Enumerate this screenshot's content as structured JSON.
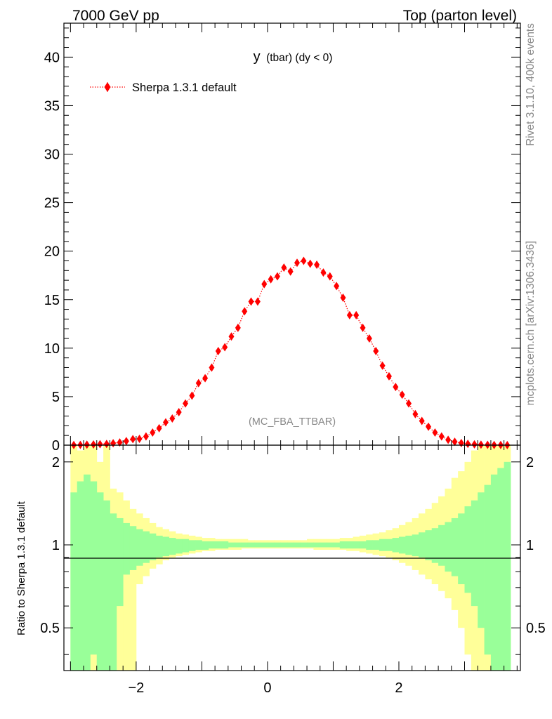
{
  "header": {
    "left": "7000 GeV pp",
    "right": "Top (parton level)"
  },
  "side_labels": {
    "rivet": "Rivet 3.1.10,  400k events",
    "mcplots": "mcplots.cern.ch [arXiv:1306.3436]"
  },
  "chart_data": [
    {
      "type": "scatter",
      "panel": "main",
      "title_main": "y",
      "title_sub": "(tbar) (dy < 0)",
      "analysis_label": "(MC_FBA_TTBAR)",
      "legend": [
        {
          "label": "Sherpa 1.3.1 default",
          "color": "#ff0000",
          "marker": "diamond",
          "line": "dotted"
        }
      ],
      "xlim": [
        -3.1,
        3.85
      ],
      "ylim": [
        0,
        43.5
      ],
      "yticks": [
        0,
        5,
        10,
        15,
        20,
        25,
        30,
        35,
        40
      ],
      "ytick_labels": [
        "0",
        "5",
        "10",
        "15",
        "20",
        "25",
        "30",
        "35",
        "40"
      ],
      "series": [
        {
          "name": "Sherpa 1.3.1 default",
          "x": [
            -2.95,
            -2.85,
            -2.75,
            -2.65,
            -2.55,
            -2.45,
            -2.35,
            -2.25,
            -2.15,
            -2.05,
            -1.95,
            -1.85,
            -1.75,
            -1.65,
            -1.55,
            -1.45,
            -1.35,
            -1.25,
            -1.15,
            -1.05,
            -0.95,
            -0.85,
            -0.75,
            -0.65,
            -0.55,
            -0.45,
            -0.35,
            -0.25,
            -0.15,
            -0.05,
            0.05,
            0.15,
            0.25,
            0.35,
            0.45,
            0.55,
            0.65,
            0.75,
            0.85,
            0.95,
            1.05,
            1.15,
            1.25,
            1.35,
            1.45,
            1.55,
            1.65,
            1.75,
            1.85,
            1.95,
            2.05,
            2.15,
            2.25,
            2.35,
            2.45,
            2.55,
            2.65,
            2.75,
            2.85,
            2.95,
            3.05,
            3.15,
            3.25,
            3.35,
            3.45,
            3.55,
            3.65
          ],
          "y": [
            0.02,
            0.03,
            0.05,
            0.07,
            0.1,
            0.13,
            0.2,
            0.28,
            0.42,
            0.62,
            0.65,
            0.9,
            1.3,
            1.75,
            2.35,
            2.75,
            3.4,
            4.3,
            5.1,
            6.4,
            6.9,
            8.0,
            9.7,
            10.1,
            11.2,
            12.1,
            13.8,
            14.8,
            14.8,
            16.6,
            17.1,
            17.4,
            18.3,
            17.9,
            18.8,
            19.0,
            18.7,
            18.6,
            17.8,
            17.4,
            16.4,
            15.2,
            13.4,
            13.4,
            12.1,
            11.0,
            9.7,
            8.2,
            7.1,
            6.0,
            5.2,
            4.3,
            3.2,
            2.5,
            1.9,
            1.3,
            0.9,
            0.55,
            0.35,
            0.22,
            0.14,
            0.08,
            0.05,
            0.04,
            0.02,
            0.02,
            0.01
          ]
        }
      ]
    },
    {
      "type": "area",
      "panel": "ratio",
      "ylabel": "Ratio to Sherpa 1.3.1 default",
      "xlim": [
        -3.1,
        3.85
      ],
      "ylim": [
        0.35,
        2.3
      ],
      "yscale": "log",
      "yticks": [
        0.5,
        1,
        2
      ],
      "ytick_labels": [
        "0.5",
        "1",
        "2"
      ],
      "xticks": [
        -2,
        0,
        2
      ],
      "xtick_labels": [
        "−2",
        "0",
        "2"
      ],
      "reference_line": 1,
      "bins": {
        "x_low": [
          -3.0,
          -2.9,
          -2.8,
          -2.7,
          -2.6,
          -2.5,
          -2.4,
          -2.3,
          -2.2,
          -2.1,
          -2.0,
          -1.9,
          -1.8,
          -1.7,
          -1.6,
          -1.5,
          -1.4,
          -1.3,
          -1.2,
          -1.1,
          -1.0,
          -0.9,
          -0.8,
          -0.7,
          -0.6,
          -0.5,
          -0.4,
          -0.3,
          -0.2,
          -0.1,
          0.0,
          0.1,
          0.2,
          0.3,
          0.4,
          0.5,
          0.6,
          0.7,
          0.8,
          0.9,
          1.0,
          1.1,
          1.2,
          1.3,
          1.4,
          1.5,
          1.6,
          1.7,
          1.8,
          1.9,
          2.0,
          2.1,
          2.2,
          2.3,
          2.4,
          2.5,
          2.6,
          2.7,
          2.8,
          2.9,
          3.0,
          3.1,
          3.2,
          3.3,
          3.4,
          3.5,
          3.6
        ],
        "x_high": [
          -2.9,
          -2.8,
          -2.7,
          -2.6,
          -2.5,
          -2.4,
          -2.3,
          -2.2,
          -2.1,
          -2.0,
          -1.9,
          -1.8,
          -1.7,
          -1.6,
          -1.5,
          -1.4,
          -1.3,
          -1.2,
          -1.1,
          -1.0,
          -0.9,
          -0.8,
          -0.7,
          -0.6,
          -0.5,
          -0.4,
          -0.3,
          -0.2,
          -0.1,
          0.0,
          0.1,
          0.2,
          0.3,
          0.4,
          0.5,
          0.6,
          0.7,
          0.8,
          0.9,
          1.0,
          1.1,
          1.2,
          1.3,
          1.4,
          1.5,
          1.6,
          1.7,
          1.8,
          1.9,
          2.0,
          2.1,
          2.2,
          2.3,
          2.4,
          2.5,
          2.6,
          2.7,
          2.8,
          2.9,
          3.0,
          3.1,
          3.2,
          3.3,
          3.4,
          3.5,
          3.6,
          3.7
        ]
      },
      "bands": [
        {
          "name": "MC total uncertainty",
          "color": "#ffff99",
          "upper": [
            2.5,
            2.2,
            2.5,
            2.5,
            2.0,
            2.3,
            1.6,
            1.55,
            1.45,
            1.35,
            1.3,
            1.25,
            1.2,
            1.16,
            1.14,
            1.12,
            1.1,
            1.09,
            1.08,
            1.07,
            1.06,
            1.06,
            1.05,
            1.05,
            1.05,
            1.05,
            1.05,
            1.04,
            1.04,
            1.04,
            1.04,
            1.04,
            1.04,
            1.04,
            1.04,
            1.04,
            1.05,
            1.05,
            1.05,
            1.05,
            1.05,
            1.06,
            1.06,
            1.07,
            1.08,
            1.09,
            1.1,
            1.11,
            1.13,
            1.15,
            1.18,
            1.21,
            1.25,
            1.3,
            1.35,
            1.42,
            1.5,
            1.6,
            1.75,
            1.85,
            2.0,
            2.2,
            2.5,
            2.5,
            2.5,
            2.5,
            2.5
          ],
          "lower": [
            0.3,
            0.3,
            0.3,
            0.3,
            0.3,
            0.3,
            0.3,
            0.3,
            0.3,
            0.3,
            0.72,
            0.77,
            0.82,
            0.85,
            0.88,
            0.9,
            0.91,
            0.92,
            0.93,
            0.94,
            0.95,
            0.95,
            0.96,
            0.96,
            0.96,
            0.96,
            0.97,
            0.97,
            0.97,
            0.97,
            0.97,
            0.97,
            0.97,
            0.97,
            0.97,
            0.97,
            0.97,
            0.96,
            0.96,
            0.96,
            0.96,
            0.96,
            0.95,
            0.95,
            0.94,
            0.93,
            0.92,
            0.91,
            0.9,
            0.88,
            0.86,
            0.84,
            0.81,
            0.78,
            0.75,
            0.72,
            0.68,
            0.64,
            0.58,
            0.5,
            0.4,
            0.3,
            0.3,
            0.3,
            0.3,
            0.3,
            0.3
          ]
        },
        {
          "name": "MC statistical uncertainty",
          "color": "#99ff99",
          "upper": [
            1.55,
            1.7,
            1.8,
            1.7,
            1.55,
            1.45,
            1.3,
            1.25,
            1.2,
            1.17,
            1.14,
            1.12,
            1.1,
            1.08,
            1.07,
            1.06,
            1.05,
            1.05,
            1.04,
            1.04,
            1.03,
            1.03,
            1.03,
            1.03,
            1.02,
            1.02,
            1.02,
            1.02,
            1.02,
            1.02,
            1.02,
            1.02,
            1.02,
            1.02,
            1.02,
            1.02,
            1.02,
            1.02,
            1.02,
            1.02,
            1.02,
            1.03,
            1.03,
            1.03,
            1.03,
            1.04,
            1.04,
            1.05,
            1.05,
            1.06,
            1.07,
            1.08,
            1.09,
            1.11,
            1.13,
            1.15,
            1.18,
            1.21,
            1.25,
            1.3,
            1.38,
            1.45,
            1.55,
            1.65,
            1.8,
            1.9,
            2.0
          ],
          "lower": [
            0.3,
            0.3,
            0.3,
            0.4,
            0.3,
            0.3,
            0.3,
            0.6,
            0.78,
            0.81,
            0.84,
            0.86,
            0.88,
            0.9,
            0.91,
            0.92,
            0.93,
            0.94,
            0.95,
            0.96,
            0.96,
            0.97,
            0.97,
            0.97,
            0.98,
            0.98,
            0.98,
            0.98,
            0.98,
            0.98,
            0.98,
            0.98,
            0.98,
            0.98,
            0.98,
            0.98,
            0.98,
            0.98,
            0.98,
            0.98,
            0.98,
            0.97,
            0.97,
            0.97,
            0.97,
            0.96,
            0.96,
            0.95,
            0.95,
            0.94,
            0.93,
            0.92,
            0.91,
            0.9,
            0.88,
            0.86,
            0.84,
            0.8,
            0.77,
            0.72,
            0.67,
            0.6,
            0.5,
            0.4,
            0.35,
            0.3,
            0.3
          ]
        }
      ]
    }
  ]
}
